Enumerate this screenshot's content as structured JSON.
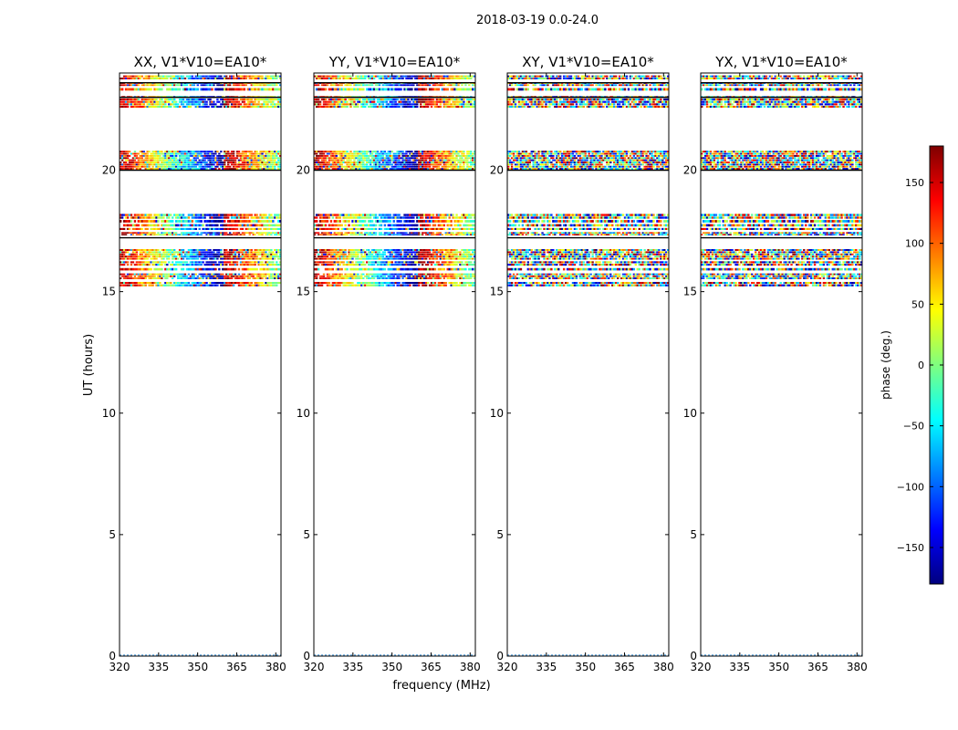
{
  "chart_data": {
    "type": "heatmap",
    "suptitle": "2018-03-19 0.0-24.0",
    "xlabel": "frequency (MHz)",
    "ylabel": "UT (hours)",
    "xlim": [
      320,
      382
    ],
    "ylim": [
      0,
      24
    ],
    "xticks": [
      320,
      335,
      350,
      365,
      380
    ],
    "yticks": [
      0,
      5,
      10,
      15,
      20
    ],
    "panels": [
      {
        "title": "XX, V1*V10=EA10*",
        "mode": "gradient"
      },
      {
        "title": "YY, V1*V10=EA10*",
        "mode": "gradient"
      },
      {
        "title": "XY, V1*V10=EA10*",
        "mode": "noise"
      },
      {
        "title": "YX, V1*V10=EA10*",
        "mode": "noise"
      }
    ],
    "data_bands_ut_hours": [
      [
        23.72,
        23.9
      ],
      [
        23.45,
        23.62
      ],
      [
        23.25,
        23.38
      ],
      [
        22.55,
        23.05
      ],
      [
        20.0,
        20.8
      ],
      [
        17.98,
        18.2
      ],
      [
        17.82,
        17.95
      ],
      [
        17.66,
        17.78
      ],
      [
        17.52,
        17.62
      ],
      [
        17.3,
        17.45
      ],
      [
        16.3,
        16.75
      ],
      [
        16.05,
        16.25
      ],
      [
        15.85,
        15.97
      ],
      [
        15.5,
        15.75
      ],
      [
        15.2,
        15.4
      ]
    ],
    "dark_lines_ut_hours": [
      23.6,
      23.0,
      20.0,
      17.22
    ],
    "colorbar": {
      "label": "phase (deg.)",
      "range": [
        -180,
        180
      ],
      "ticks": [
        150,
        100,
        50,
        0,
        -50,
        -100,
        -150
      ],
      "tick_labels": [
        "150",
        "100",
        "50",
        "0",
        "−50",
        "−100",
        "−150"
      ],
      "colormap": "jet",
      "colors": [
        "#00007f",
        "#0000ff",
        "#007fff",
        "#00ffff",
        "#7fff7f",
        "#ffff00",
        "#ff7f00",
        "#ff0000",
        "#7f0000"
      ]
    }
  }
}
